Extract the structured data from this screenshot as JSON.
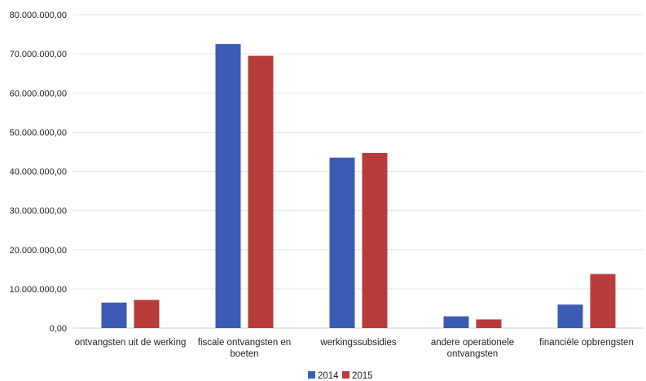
{
  "chart_data": {
    "type": "bar",
    "categories": [
      "ontvangsten uit de werking",
      "fiscale ontvangsten en boeten",
      "werkingssubsidies",
      "andere operationele ontvangsten",
      "financiële opbrengsten"
    ],
    "category_lines": [
      [
        "ontvangsten uit de werking"
      ],
      [
        "fiscale ontvangsten en",
        "boeten"
      ],
      [
        "werkingssubsidies"
      ],
      [
        "andere operationele",
        "ontvangsten"
      ],
      [
        "financiële opbrengsten"
      ]
    ],
    "series": [
      {
        "name": "2014",
        "color": "#3b5bb5",
        "values": [
          6500000,
          72500000,
          43500000,
          3000000,
          6000000
        ]
      },
      {
        "name": "2015",
        "color": "#b83c3a",
        "values": [
          7200000,
          69500000,
          44700000,
          2200000,
          13800000
        ]
      }
    ],
    "ylim": [
      0,
      80000000
    ],
    "yticks": [
      0,
      10000000,
      20000000,
      30000000,
      40000000,
      50000000,
      60000000,
      70000000,
      80000000
    ],
    "ytick_labels": [
      "0,00",
      "10.000.000,00",
      "20.000.000,00",
      "30.000.000,00",
      "40.000.000,00",
      "50.000.000,00",
      "60.000.000,00",
      "70.000.000,00",
      "80.000.000,00"
    ],
    "grid": true,
    "legend_position": "bottom-center",
    "title": "",
    "xlabel": "",
    "ylabel": ""
  }
}
